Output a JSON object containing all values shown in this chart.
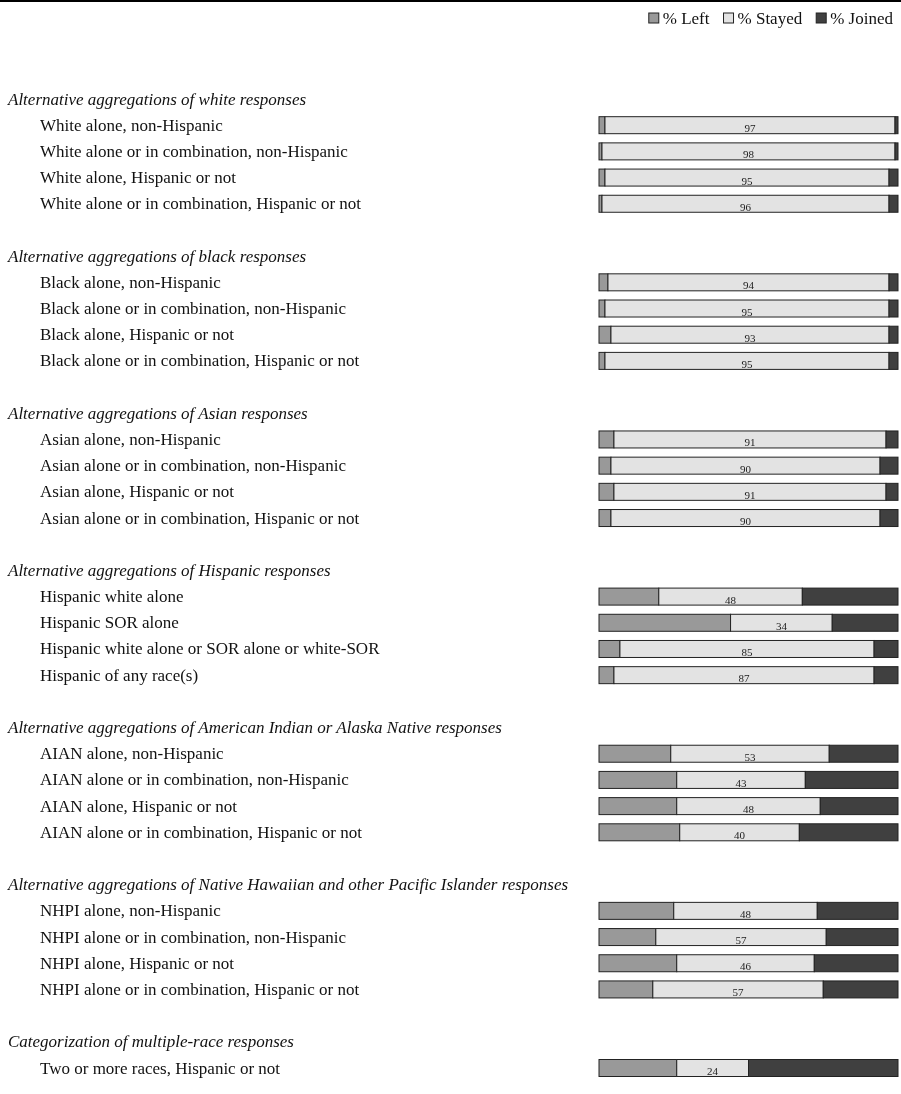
{
  "chart_data": {
    "type": "bar",
    "orientation": "horizontal",
    "stacked": true,
    "legend": "top right",
    "tick_labels": "y",
    "xlim": [
      0,
      100
    ],
    "categories": [
      null,
      "White alone, non-Hispanic",
      "White alone or in combination, non-Hispanic",
      "White alone, Hispanic or not",
      "White alone or in combination, Hispanic or not",
      null,
      "Black alone, non-Hispanic",
      "Black alone or in combination, non-Hispanic",
      "Black alone, Hispanic or not",
      "Black alone or in combination, Hispanic or not",
      null,
      "Asian alone, non-Hispanic",
      "Asian alone or in combination, non-Hispanic",
      "Asian alone, Hispanic or not",
      "Asian alone or in combination, Hispanic or not",
      null,
      "Hispanic white alone",
      "Hispanic SOR alone",
      "Hispanic white alone or SOR alone or white-SOR",
      "Hispanic of any race(s)",
      null,
      "AIAN alone, non-Hispanic",
      "AIAN alone or in combination, non-Hispanic",
      "AIAN alone, Hispanic or not",
      "AIAN alone or in combination, Hispanic or not",
      null,
      "NHPI alone, non-Hispanic",
      "NHPI alone or in combination, non-Hispanic",
      "NHPI alone, Hispanic or not",
      "NHPI alone or in combination, Hispanic or not",
      null,
      "Two or more races, Hispanic or not"
    ],
    "annotations": [
      "Alternative aggregations of white responses",
      "Alternative aggregations of black responses",
      "Alternative aggregations of Asian responses",
      "Alternative aggregations of Hispanic responses",
      "Alternative aggregations of American Indian or Alaska Native responses",
      "Alternative aggregations of Native Hawaiian and other Pacific Islander responses",
      "Categorization of multiple-race responses"
    ],
    "series": [
      {
        "name": "% Left",
        "color": "#999999",
        "values": [
          null,
          2,
          1,
          2,
          1,
          null,
          3,
          2,
          4,
          2,
          null,
          5,
          4,
          5,
          4,
          null,
          20,
          44,
          7,
          5,
          null,
          24,
          26,
          26,
          27,
          null,
          25,
          19,
          26,
          18,
          null,
          26
        ]
      },
      {
        "name": "% Stayed",
        "color": "#e3e3e3",
        "values": [
          null,
          97,
          98,
          95,
          96,
          null,
          94,
          95,
          93,
          95,
          null,
          91,
          90,
          91,
          90,
          null,
          48,
          34,
          85,
          87,
          null,
          53,
          43,
          48,
          40,
          null,
          48,
          57,
          46,
          57,
          null,
          24
        ],
        "value_labels": [
          null,
          "97",
          "98",
          "95",
          "96",
          null,
          "94",
          "95",
          "93",
          "95",
          null,
          "91",
          "90",
          "91",
          "90",
          null,
          "48",
          "34",
          "85",
          "87",
          null,
          "53",
          "43",
          "48",
          "40",
          null,
          "48",
          "57",
          "46",
          "57",
          null,
          "24"
        ]
      },
      {
        "name": "% Joined",
        "color": "#404040",
        "values": [
          null,
          1,
          1,
          3,
          3,
          null,
          3,
          3,
          3,
          3,
          null,
          4,
          6,
          4,
          6,
          null,
          32,
          22,
          8,
          8,
          null,
          23,
          31,
          26,
          33,
          null,
          27,
          24,
          28,
          25,
          null,
          50
        ]
      }
    ]
  }
}
